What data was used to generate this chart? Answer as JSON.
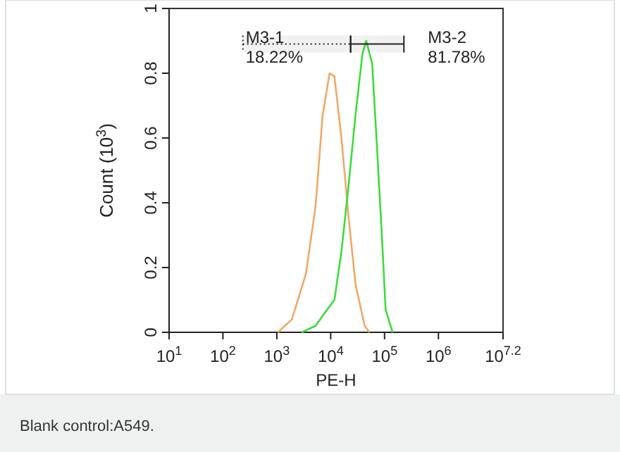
{
  "chart_data": {
    "type": "line",
    "xlabel": "PE-H",
    "ylabel": "Count (10$^{3}$)",
    "log": "x",
    "xlim": [
      10,
      15848932
    ],
    "xticks": [
      {
        "value": 10,
        "label": "10$^{1}$"
      },
      {
        "value": 100,
        "label": "10$^{2}$"
      },
      {
        "value": 1000,
        "label": "10$^{3}$"
      },
      {
        "value": 10000,
        "label": "10$^{4}$"
      },
      {
        "value": 100000,
        "label": "10$^{5}$"
      },
      {
        "value": 1000000,
        "label": "10$^{6}$"
      },
      {
        "value": 15848932,
        "label": "10$^{7.2}$"
      }
    ],
    "ylim": [
      0,
      1
    ],
    "yticks": [
      0,
      0.2,
      0.4,
      0.6,
      0.8,
      1
    ],
    "grid": false,
    "series": [
      {
        "color": "#f0a868",
        "x": [
          1047,
          1905,
          3467,
          5248,
          7079,
          9550,
          11749,
          15849,
          21380,
          28840,
          42658,
          52481
        ],
        "values": [
          0,
          0.04,
          0.18,
          0.39,
          0.67,
          0.8,
          0.79,
          0.6,
          0.36,
          0.15,
          0.02,
          0
        ]
      },
      {
        "color": "#3ddc3d",
        "x": [
          2884,
          5248,
          7762,
          11749,
          15849,
          21380,
          28840,
          38905,
          45709,
          58884,
          70795,
          89125,
          104713,
          141254
        ],
        "values": [
          0,
          0.02,
          0.06,
          0.1,
          0.25,
          0.45,
          0.67,
          0.86,
          0.9,
          0.83,
          0.6,
          0.3,
          0.07,
          0
        ]
      }
    ],
    "bands": [
      {
        "axis": "x",
        "from": 234,
        "to": 23442,
        "label": "M3-1"
      },
      {
        "axis": "x",
        "from": 23442,
        "to": 229087,
        "label": "M3-2"
      }
    ],
    "annotations": [
      {
        "text": "18.22%",
        "x": 234,
        "y": 0.89
      },
      {
        "text": "81.78%",
        "x": 229087,
        "y": 0.89
      },
      "Blank control:A549."
    ]
  }
}
